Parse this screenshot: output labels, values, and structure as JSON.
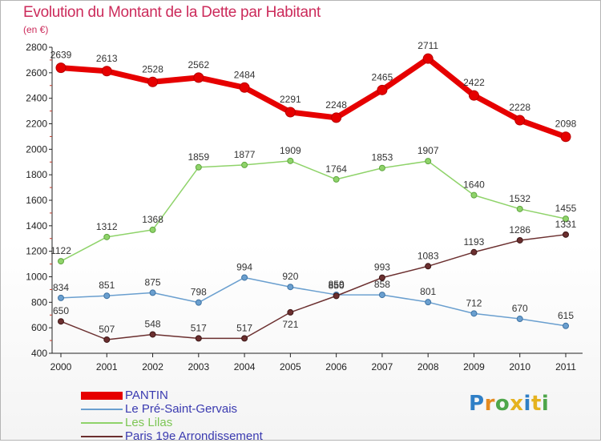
{
  "header": {
    "title": "Evolution du Montant de la Dette par Habitant",
    "unit": "(en €)"
  },
  "legend": [
    {
      "label": "PANTIN",
      "color": "#e60000"
    },
    {
      "label": "Le Pré-Saint-Gervais",
      "color": "#6a9fcf"
    },
    {
      "label": "Les Lilas",
      "color": "#8fd36a"
    },
    {
      "label": "Paris 19e  Arrondissement",
      "color": "#6b2f2f"
    }
  ],
  "logo": {
    "letters": [
      "P",
      "r",
      "o",
      "x",
      "i",
      "t",
      "i"
    ],
    "colors": [
      "#2f7fc6",
      "#e58a1f",
      "#4ea64a",
      "#e5b21f",
      "#2f7fc6",
      "#e5b21f",
      "#4ea64a"
    ]
  },
  "chart_data": {
    "type": "line",
    "title": "Evolution du Montant de la Dette par Habitant",
    "ylabel": "(en €)",
    "x": [
      "2000",
      "2001",
      "2002",
      "2003",
      "2004",
      "2005",
      "2006",
      "2007",
      "2008",
      "2009",
      "2010",
      "2011"
    ],
    "ylim": [
      400,
      2800
    ],
    "yticks": [
      400,
      600,
      800,
      1000,
      1200,
      1400,
      1600,
      1800,
      2000,
      2200,
      2400,
      2600,
      2800
    ],
    "grid": false,
    "legend_position": "bottom-left",
    "series": [
      {
        "name": "PANTIN",
        "color": "#e60000",
        "values": [
          2639,
          2613,
          2528,
          2562,
          2484,
          2291,
          2248,
          2465,
          2711,
          2422,
          2228,
          2098
        ]
      },
      {
        "name": "Le Pré-Saint-Gervais",
        "color": "#6a9fcf",
        "values": [
          834,
          851,
          875,
          798,
          994,
          920,
          859,
          858,
          801,
          712,
          670,
          615
        ]
      },
      {
        "name": "Les Lilas",
        "color": "#8fd36a",
        "values": [
          1122,
          1312,
          1368,
          1859,
          1877,
          1909,
          1764,
          1853,
          1907,
          1640,
          1532,
          1455
        ]
      },
      {
        "name": "Paris 19e  Arrondissement",
        "color": "#6b2f2f",
        "values": [
          650,
          507,
          548,
          517,
          517,
          721,
          850,
          993,
          1083,
          1193,
          1286,
          1331
        ]
      }
    ]
  }
}
